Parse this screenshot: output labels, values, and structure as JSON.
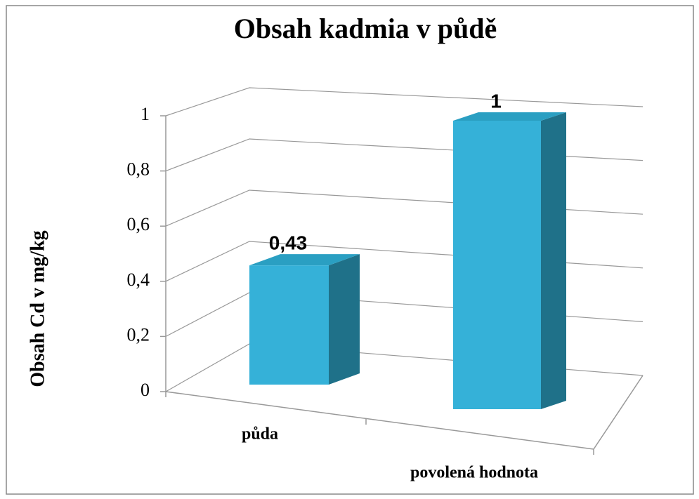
{
  "chart_data": {
    "type": "bar3d",
    "title": "Obsah kadmia v půdě",
    "y_axis_label": "Obsah Cd v mg/kg",
    "categories": [
      "půda",
      "povolená hodnota"
    ],
    "values": [
      0.43,
      1
    ],
    "value_labels": [
      "0,43",
      "1"
    ],
    "color": "#35b1d8",
    "ylim": [
      0,
      1
    ],
    "yticks": [
      0,
      {
        "value": 0.2,
        "label": "0,2"
      },
      {
        "value": 0.4,
        "label": "0,4"
      },
      {
        "value": 0.6,
        "label": "0,6"
      },
      {
        "value": 0.8,
        "label": "0,8"
      },
      1
    ],
    "grid": true
  }
}
